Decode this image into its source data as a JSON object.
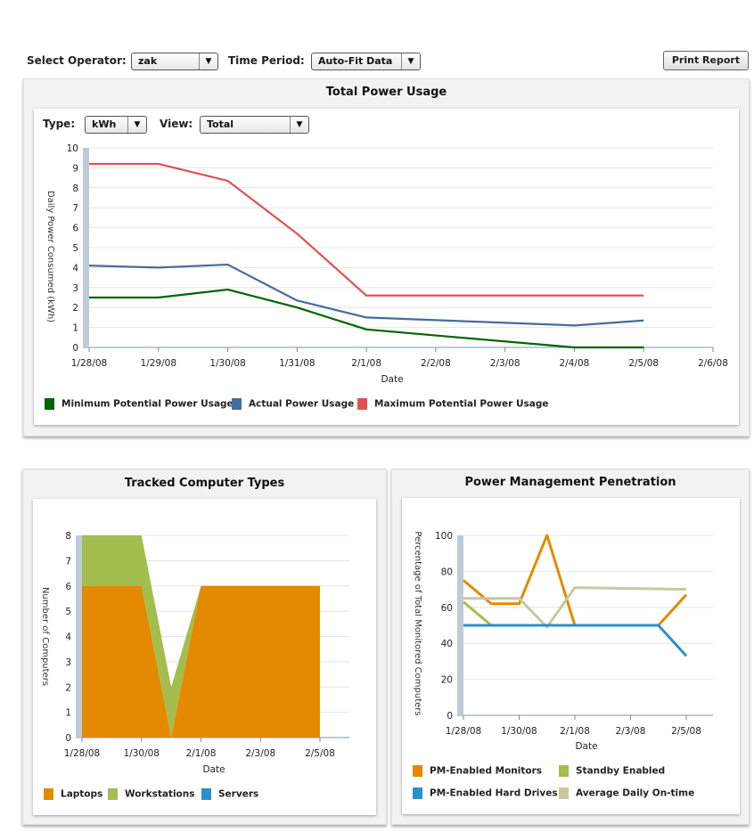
{
  "toolbar": {
    "operator_label": "Select Operator:",
    "operator_value": "zak",
    "period_label": "Time Period:",
    "period_value": "Auto-Fit Data",
    "print_label": "Print Report"
  },
  "power_panel": {
    "title": "Total Power Usage",
    "type_label": "Type:",
    "type_value": "kWh",
    "view_label": "View:",
    "view_value": "Total"
  },
  "types_panel": {
    "title": "Tracked Computer Types"
  },
  "pm_panel": {
    "title": "Power Management Penetration"
  },
  "colors": {
    "min": "#006400",
    "actual": "#436d9c",
    "max": "#e05252",
    "laptops": "#e38a00",
    "workstations": "#a3bd4e",
    "servers": "#2990cf",
    "pm_monitors": "#e38a00",
    "standby": "#a3bd4e",
    "hard_drives": "#2990cf",
    "ontime": "#c8c8a0"
  },
  "chart_data": [
    {
      "id": "power",
      "type": "line",
      "x": [
        "1/28/08",
        "1/29/08",
        "1/30/08",
        "1/31/08",
        "2/1/08",
        "2/2/08",
        "2/3/08",
        "2/4/08",
        "2/5/08",
        "2/6/08"
      ],
      "xlabel": "Date",
      "ylabel": "Daily Power Consumed (kWh)",
      "ylim": [
        0,
        10
      ],
      "yticks": [
        "0",
        "1",
        "2",
        "3",
        "4",
        "5",
        "6",
        "7",
        "8",
        "9",
        "10"
      ],
      "grid": true,
      "legend_position": "bottom",
      "series": [
        {
          "name": "Minimum Potential Power Usage",
          "color": "#006400",
          "values": [
            2.5,
            2.5,
            2.9,
            2.0,
            0.9,
            null,
            null,
            0.0,
            0.0,
            null
          ]
        },
        {
          "name": "Actual Power Usage",
          "color": "#436d9c",
          "values": [
            4.1,
            4.0,
            4.15,
            2.35,
            1.5,
            null,
            null,
            1.1,
            1.35,
            null
          ]
        },
        {
          "name": "Maximum Potential Power Usage",
          "color": "#e05252",
          "values": [
            9.2,
            9.2,
            8.35,
            5.7,
            2.6,
            null,
            null,
            2.6,
            2.6,
            null
          ]
        }
      ]
    },
    {
      "id": "types",
      "type": "area",
      "x": [
        "1/28/08",
        "1/30/08",
        "2/1/08",
        "2/3/08",
        "2/5/08"
      ],
      "xlabel": "Date",
      "ylabel": "Number of Computers",
      "ylim": [
        0,
        8
      ],
      "yticks": [
        "0",
        "1",
        "2",
        "3",
        "4",
        "5",
        "6",
        "7",
        "8"
      ],
      "grid": true,
      "legend_position": "bottom",
      "points": [
        {
          "x": 0,
          "laptops": 6,
          "workstations": 2
        },
        {
          "x": 1,
          "laptops": 6,
          "workstations": 2
        },
        {
          "x": 1.5,
          "laptops": 0,
          "workstations": 2
        },
        {
          "x": 2,
          "laptops": 6,
          "workstations": 0
        },
        {
          "x": 4,
          "laptops": 6,
          "workstations": 0
        }
      ],
      "series": [
        {
          "name": "Laptops",
          "color": "#e38a00"
        },
        {
          "name": "Workstations",
          "color": "#a3bd4e"
        },
        {
          "name": "Servers",
          "color": "#2990cf"
        }
      ]
    },
    {
      "id": "pm",
      "type": "line",
      "x": [
        "1/28/08",
        "1/30/08",
        "2/1/08",
        "2/3/08",
        "2/5/08"
      ],
      "xlabel": "Date",
      "ylabel": "Percentage of Total Monitored Computers",
      "ylim": [
        0,
        100
      ],
      "yticks": [
        "0",
        "20",
        "40",
        "60",
        "80",
        "100"
      ],
      "grid": true,
      "legend_position": "bottom",
      "series": [
        {
          "name": "PM-Enabled Monitors",
          "color": "#e38a00",
          "points": [
            [
              0,
              75
            ],
            [
              0.5,
              62
            ],
            [
              1,
              62
            ],
            [
              1.5,
              100
            ],
            [
              2,
              50
            ],
            [
              3.5,
              50
            ],
            [
              4,
              67
            ]
          ]
        },
        {
          "name": "Standby Enabled",
          "color": "#a3bd4e",
          "points": [
            [
              0,
              63
            ],
            [
              0.5,
              50
            ],
            [
              3.5,
              50
            ]
          ]
        },
        {
          "name": "PM-Enabled Hard Drives",
          "color": "#2990cf",
          "points": [
            [
              0,
              50
            ],
            [
              3.5,
              50
            ],
            [
              4,
              33
            ]
          ]
        },
        {
          "name": "Average Daily On-time",
          "color": "#c8c8a0",
          "points": [
            [
              0,
              65
            ],
            [
              1,
              65
            ],
            [
              1.5,
              49
            ],
            [
              2,
              71
            ],
            [
              4,
              70
            ]
          ]
        }
      ]
    }
  ]
}
